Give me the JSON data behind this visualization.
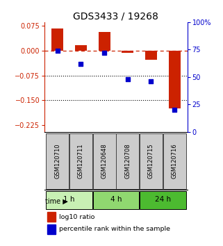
{
  "title": "GDS3433 / 19268",
  "samples": [
    "GSM120710",
    "GSM120711",
    "GSM120648",
    "GSM120708",
    "GSM120715",
    "GSM120716"
  ],
  "log10_ratio": [
    0.065,
    0.015,
    0.055,
    -0.008,
    -0.028,
    -0.175
  ],
  "percentile_rank": [
    74,
    62,
    72,
    48,
    46,
    20
  ],
  "groups": [
    {
      "label": "1 h",
      "start": 0,
      "end": 2,
      "color": "#c8f0b4"
    },
    {
      "label": "4 h",
      "start": 2,
      "end": 4,
      "color": "#90d870"
    },
    {
      "label": "24 h",
      "start": 4,
      "end": 6,
      "color": "#4cba30"
    }
  ],
  "ylim_left": [
    -0.245,
    0.085
  ],
  "ylim_right": [
    0,
    100
  ],
  "yticks_left": [
    0.075,
    0,
    -0.075,
    -0.15,
    -0.225
  ],
  "yticks_right": [
    100,
    75,
    50,
    25,
    0
  ],
  "bar_color": "#cc2200",
  "dot_color": "#0000cc",
  "dotted_lines": [
    -0.075,
    -0.15
  ],
  "bar_width": 0.5,
  "dot_size": 25,
  "time_label": "time",
  "legend_bar_label": "log10 ratio",
  "legend_dot_label": "percentile rank within the sample",
  "title_fontsize": 10,
  "tick_fontsize": 7,
  "sample_box_color": "#cccccc",
  "sample_box_edge": "#444444"
}
